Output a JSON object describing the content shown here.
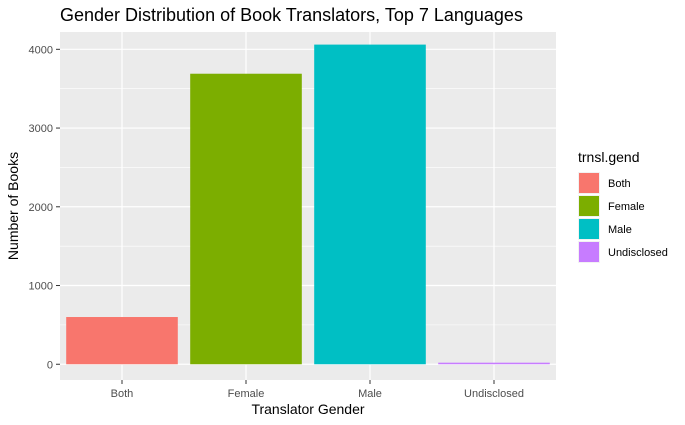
{
  "chart_data": {
    "type": "bar",
    "title": "Gender Distribution of Book Translators, Top 7 Languages",
    "xlabel": "Translator Gender",
    "ylabel": "Number of Books",
    "categories": [
      "Both",
      "Female",
      "Male",
      "Undisclosed"
    ],
    "values": [
      600,
      3690,
      4060,
      20
    ],
    "ylim": [
      -200,
      4220
    ],
    "yticks": [
      0,
      1000,
      2000,
      3000,
      4000
    ],
    "grid": true,
    "legend": {
      "title": "trnsl.gend",
      "position": "right",
      "entries": [
        "Both",
        "Female",
        "Male",
        "Undisclosed"
      ]
    },
    "colors": [
      "#F8766D",
      "#7CAE00",
      "#00BFC4",
      "#C77CFF"
    ],
    "panel_background": "#EBEBEB",
    "grid_color": "#FFFFFF"
  }
}
